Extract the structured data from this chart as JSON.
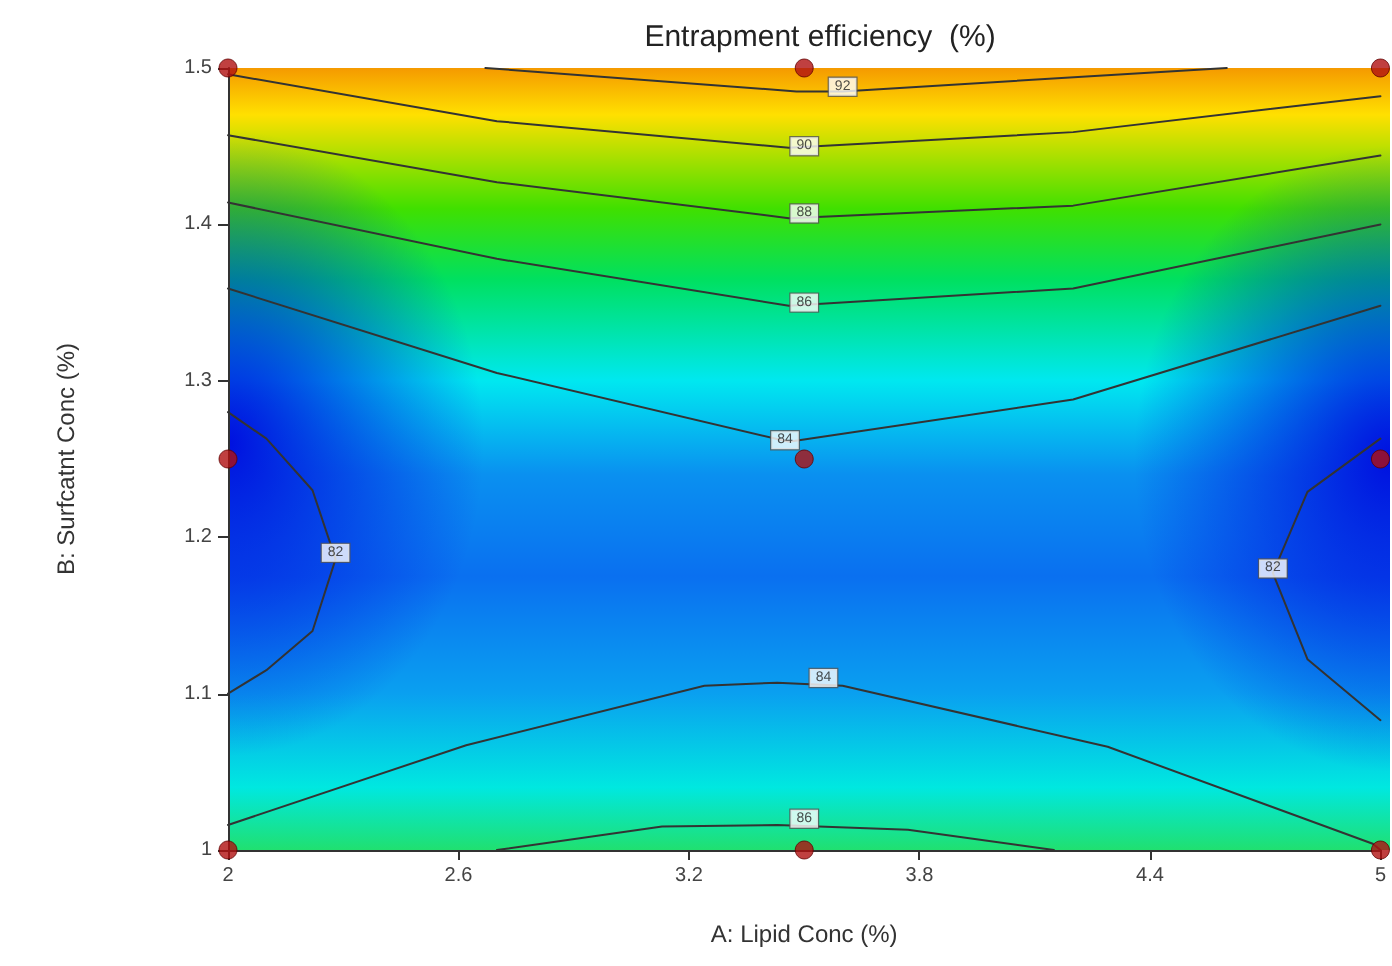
{
  "chart_data": {
    "type": "line",
    "title": "Entrapment efficiency  (%)",
    "xlabel": "A: Lipid Conc (%)",
    "ylabel": "B: Surfcatnt Conc (%)",
    "xlim": [
      2,
      5
    ],
    "ylim": [
      1,
      1.5
    ],
    "xticks": [
      2,
      2.6,
      3.2,
      3.8,
      4.4,
      5
    ],
    "yticks": [
      1,
      1.1,
      1.2,
      1.3,
      1.4,
      1.5
    ],
    "grid": false,
    "marker": "none",
    "line_style": "solid",
    "series": [
      {
        "color": "#333333",
        "x": [
          2.67,
          3.48,
          3.6,
          4.6
        ],
        "values": [
          1.5,
          1.485,
          1.485,
          1.5
        ]
      },
      {
        "color": "#333333",
        "x": [
          2,
          2.7,
          3.46,
          4.2,
          5
        ],
        "values": [
          1.496,
          1.466,
          1.449,
          1.459,
          1.482
        ]
      },
      {
        "color": "#333333",
        "x": [
          2,
          2.7,
          3.46,
          4.2,
          5
        ],
        "values": [
          1.457,
          1.427,
          1.404,
          1.412,
          1.444
        ]
      },
      {
        "color": "#333333",
        "x": [
          2,
          2.7,
          3.46,
          4.2,
          5
        ],
        "values": [
          1.414,
          1.378,
          1.348,
          1.359,
          1.4
        ]
      },
      {
        "color": "#333333",
        "x": [
          2,
          2.7,
          3.46,
          4.2,
          5
        ],
        "values": [
          1.359,
          1.305,
          1.261,
          1.288,
          1.348
        ]
      },
      {
        "color": "#333333",
        "x": [
          2,
          2.1,
          2.22,
          2.28,
          2.22,
          2.1,
          2
        ],
        "values": [
          1.28,
          1.263,
          1.23,
          1.186,
          1.14,
          1.115,
          1.1
        ]
      },
      {
        "color": "#333333",
        "x": [
          5,
          4.81,
          4.72,
          4.81,
          5
        ],
        "values": [
          1.263,
          1.229,
          1.177,
          1.122,
          1.083
        ]
      },
      {
        "color": "#333333",
        "x": [
          2,
          2.62,
          3.24,
          3.43,
          3.6,
          4.29,
          4.98,
          5
        ],
        "values": [
          1.016,
          1.067,
          1.105,
          1.107,
          1.105,
          1.066,
          1.004,
          1
        ]
      },
      {
        "color": "#333333",
        "x": [
          2.7,
          3.13,
          3.43,
          3.77,
          4.15
        ],
        "values": [
          1,
          1.015,
          1.016,
          1.013,
          1
        ]
      },
      {
        "type": "scatter",
        "marker": "circle",
        "color": "#b01010",
        "x": [
          2,
          2,
          2,
          3.5,
          3.5,
          3.5,
          5,
          5,
          5
        ],
        "values": [
          1,
          1.25,
          1.5,
          1,
          1.25,
          1.5,
          1,
          1.25,
          1.5
        ]
      }
    ],
    "annotations": [
      {
        "text": "92",
        "x": 3.6,
        "y": 1.488
      },
      {
        "text": "90",
        "x": 3.5,
        "y": 1.45
      },
      {
        "text": "88",
        "x": 3.5,
        "y": 1.407
      },
      {
        "text": "86",
        "x": 3.5,
        "y": 1.35
      },
      {
        "text": "84",
        "x": 3.45,
        "y": 1.262
      },
      {
        "text": "82",
        "x": 2.28,
        "y": 1.19
      },
      {
        "text": "82",
        "x": 4.72,
        "y": 1.18
      },
      {
        "text": "84",
        "x": 3.55,
        "y": 1.11
      },
      {
        "text": "86",
        "x": 3.5,
        "y": 1.02
      }
    ]
  }
}
